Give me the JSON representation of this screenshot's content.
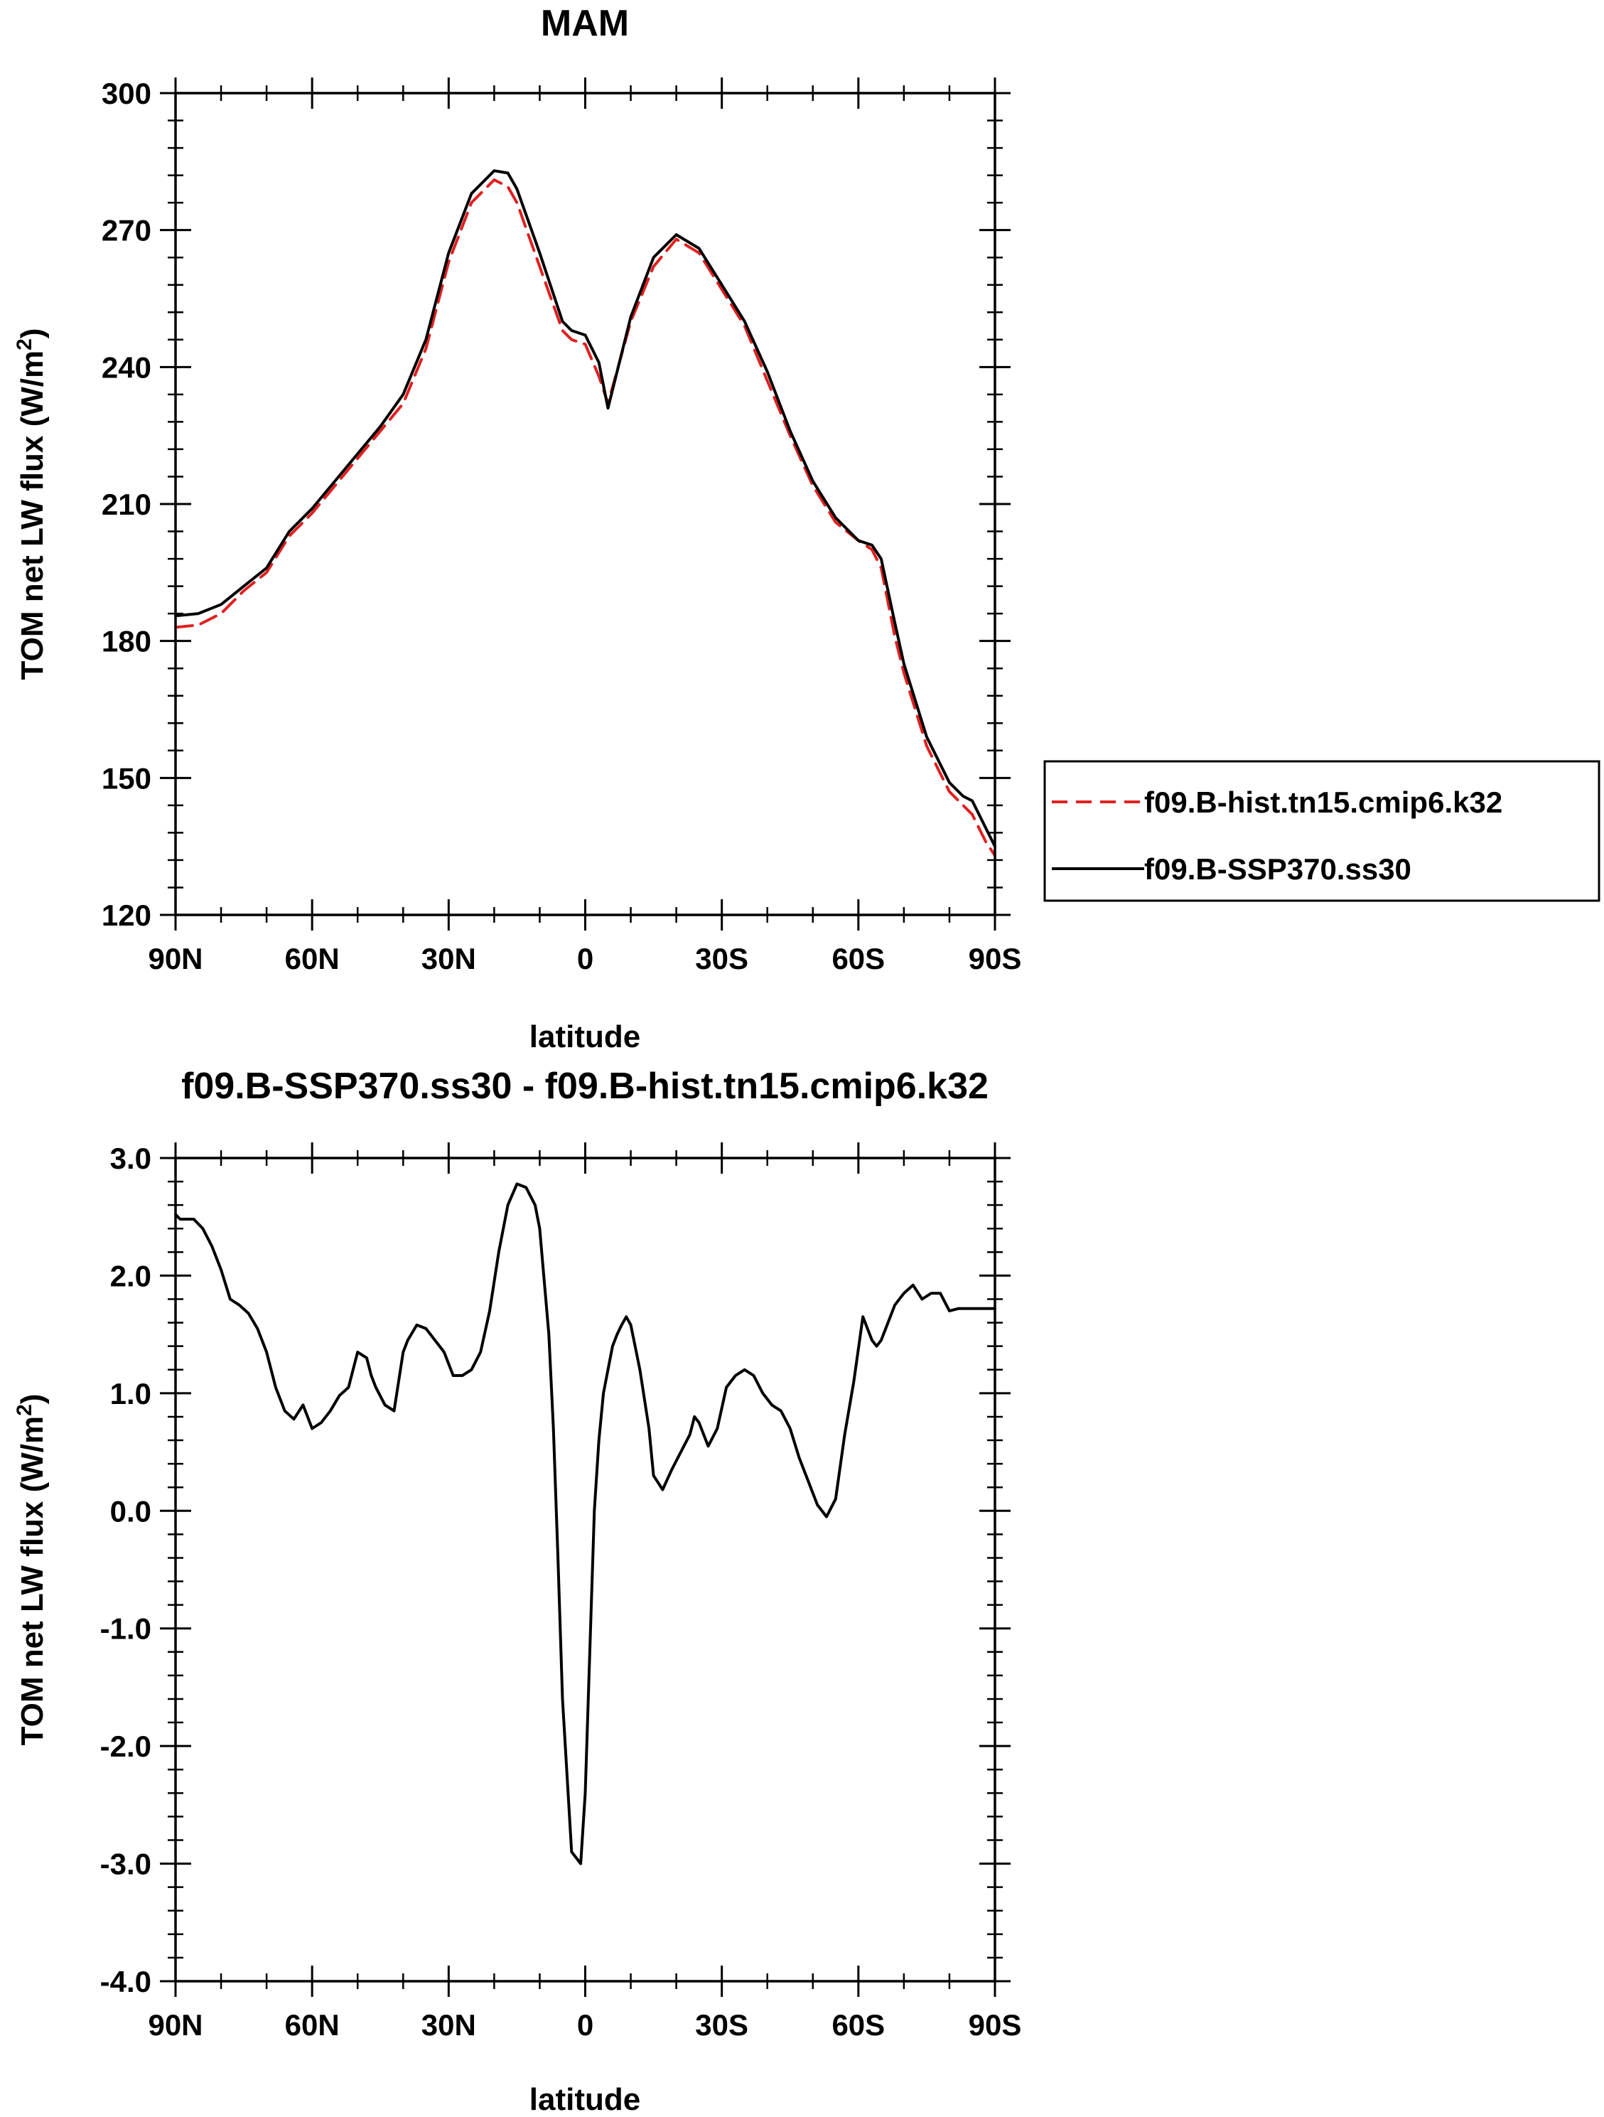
{
  "chart_data": [
    {
      "type": "line",
      "title": "MAM",
      "xlabel": "latitude",
      "ylabel": "TOM net LW flux (W/m²)",
      "ylabel_main": "TOM net LW flux (W/m",
      "ylabel_sup": "2",
      "ylabel_end": ")",
      "xlim": [
        90,
        -90
      ],
      "ylim": [
        120,
        300
      ],
      "xticks": [
        90,
        60,
        30,
        0,
        -30,
        -60,
        -90
      ],
      "xticklabels": [
        "90N",
        "60N",
        "30N",
        "0",
        "30S",
        "60S",
        "90S"
      ],
      "yticks": [
        120,
        150,
        180,
        210,
        240,
        270,
        300
      ],
      "yticklabels": [
        "120",
        "150",
        "180",
        "210",
        "240",
        "270",
        "300"
      ],
      "legend_position": "right",
      "series": [
        {
          "name": "f09.B-hist.tn15.cmip6.k32",
          "color": "#e02020",
          "dash": "dashed",
          "x": [
            90,
            85,
            80,
            75,
            70,
            65,
            60,
            55,
            50,
            45,
            40,
            35,
            30,
            25,
            20,
            17,
            15,
            10,
            5,
            3,
            0,
            -3,
            -5,
            -10,
            -15,
            -20,
            -25,
            -30,
            -35,
            -40,
            -45,
            -50,
            -55,
            -60,
            -63,
            -65,
            -68,
            -70,
            -75,
            -80,
            -83,
            -85,
            -88,
            -90
          ],
          "y": [
            183,
            183.5,
            186,
            191,
            195,
            203,
            208,
            214,
            220,
            226,
            232,
            244,
            263,
            276,
            281,
            279.5,
            276,
            262,
            248,
            246,
            245,
            238,
            232,
            250,
            262,
            268,
            265,
            257,
            249,
            237,
            225,
            214,
            206,
            202,
            200,
            196,
            181,
            173,
            157,
            147,
            144,
            142,
            136,
            133
          ]
        },
        {
          "name": "f09.B-SSP370.ss30",
          "color": "#000000",
          "dash": "solid",
          "x": [
            90,
            85,
            80,
            75,
            70,
            65,
            60,
            55,
            50,
            45,
            40,
            35,
            30,
            25,
            20,
            17,
            15,
            10,
            5,
            3,
            0,
            -3,
            -5,
            -10,
            -15,
            -20,
            -25,
            -30,
            -35,
            -40,
            -45,
            -50,
            -55,
            -60,
            -63,
            -65,
            -68,
            -70,
            -75,
            -80,
            -83,
            -85,
            -88,
            -90
          ],
          "y": [
            185.5,
            186,
            188,
            192,
            196,
            204,
            209,
            215,
            221,
            227,
            234,
            246,
            265,
            278,
            283,
            282.5,
            279,
            265,
            250,
            248,
            247,
            241,
            231,
            251,
            264,
            269,
            266,
            258,
            250,
            239,
            226,
            215,
            207,
            202,
            201,
            198,
            184,
            175,
            159,
            149,
            146,
            145,
            139,
            135
          ]
        }
      ]
    },
    {
      "type": "line",
      "title": "f09.B-SSP370.ss30 - f09.B-hist.tn15.cmip6.k32",
      "xlabel": "latitude",
      "ylabel": "TOM net LW flux (W/m²)",
      "ylabel_main": "TOM net LW flux (W/m",
      "ylabel_sup": "2",
      "ylabel_end": ")",
      "xlim": [
        90,
        -90
      ],
      "ylim": [
        -4,
        3
      ],
      "xticks": [
        90,
        60,
        30,
        0,
        -30,
        -60,
        -90
      ],
      "xticklabels": [
        "90N",
        "60N",
        "30N",
        "0",
        "30S",
        "60S",
        "90S"
      ],
      "yticks": [
        -4,
        -3,
        -2,
        -1,
        0,
        1,
        2,
        3
      ],
      "yticklabels": [
        "-4.0",
        "-3.0",
        "-2.0",
        "-1.0",
        "0.0",
        "1.0",
        "2.0",
        "3.0"
      ],
      "series": [
        {
          "name": "f09.B-SSP370.ss30 - f09.B-hist.tn15.cmip6.k32",
          "color": "#000000",
          "dash": "solid",
          "x": [
            90,
            89,
            86,
            84,
            82,
            80,
            78,
            76,
            74,
            72,
            70,
            68,
            66,
            64,
            62,
            60,
            58,
            56,
            54,
            52,
            50,
            48,
            47,
            46,
            44,
            42,
            40,
            39,
            37,
            35,
            33,
            31,
            29,
            27,
            25,
            23,
            21,
            19,
            17,
            15,
            13,
            11,
            10,
            8,
            7,
            6,
            5,
            3,
            1,
            0,
            -1,
            -2,
            -3,
            -4,
            -5,
            -6,
            -7,
            -8,
            -9,
            -10,
            -12,
            -14,
            -15,
            -17,
            -19,
            -21,
            -23,
            -24,
            -25,
            -27,
            -29,
            -31,
            -33,
            -35,
            -37,
            -39,
            -41,
            -43,
            -45,
            -47,
            -49,
            -51,
            -53,
            -55,
            -57,
            -59,
            -61,
            -62,
            -63,
            -64,
            -65,
            -66,
            -68,
            -70,
            -72,
            -74,
            -76,
            -78,
            -80,
            -82,
            -84,
            -86,
            -88,
            -89,
            -90
          ],
          "y": [
            2.52,
            2.48,
            2.48,
            2.4,
            2.25,
            2.05,
            1.8,
            1.75,
            1.68,
            1.55,
            1.35,
            1.05,
            0.85,
            0.78,
            0.9,
            0.7,
            0.75,
            0.85,
            0.98,
            1.05,
            1.35,
            1.3,
            1.15,
            1.05,
            0.9,
            0.85,
            1.35,
            1.45,
            1.58,
            1.55,
            1.45,
            1.35,
            1.15,
            1.15,
            1.2,
            1.35,
            1.7,
            2.2,
            2.6,
            2.78,
            2.75,
            2.6,
            2.4,
            1.5,
            0.7,
            -0.4,
            -1.6,
            -2.9,
            -3.0,
            -2.4,
            -1.2,
            0.0,
            0.6,
            1.0,
            1.2,
            1.4,
            1.5,
            1.58,
            1.65,
            1.58,
            1.2,
            0.7,
            0.3,
            0.18,
            0.35,
            0.5,
            0.65,
            0.8,
            0.75,
            0.55,
            0.7,
            1.05,
            1.15,
            1.2,
            1.15,
            1.0,
            0.9,
            0.85,
            0.7,
            0.45,
            0.25,
            0.05,
            -0.05,
            0.1,
            0.65,
            1.1,
            1.65,
            1.55,
            1.45,
            1.4,
            1.45,
            1.55,
            1.75,
            1.85,
            1.92,
            1.8,
            1.85,
            1.85,
            1.7,
            1.72,
            1.72,
            1.72,
            1.72,
            1.72,
            1.72
          ]
        }
      ]
    }
  ]
}
